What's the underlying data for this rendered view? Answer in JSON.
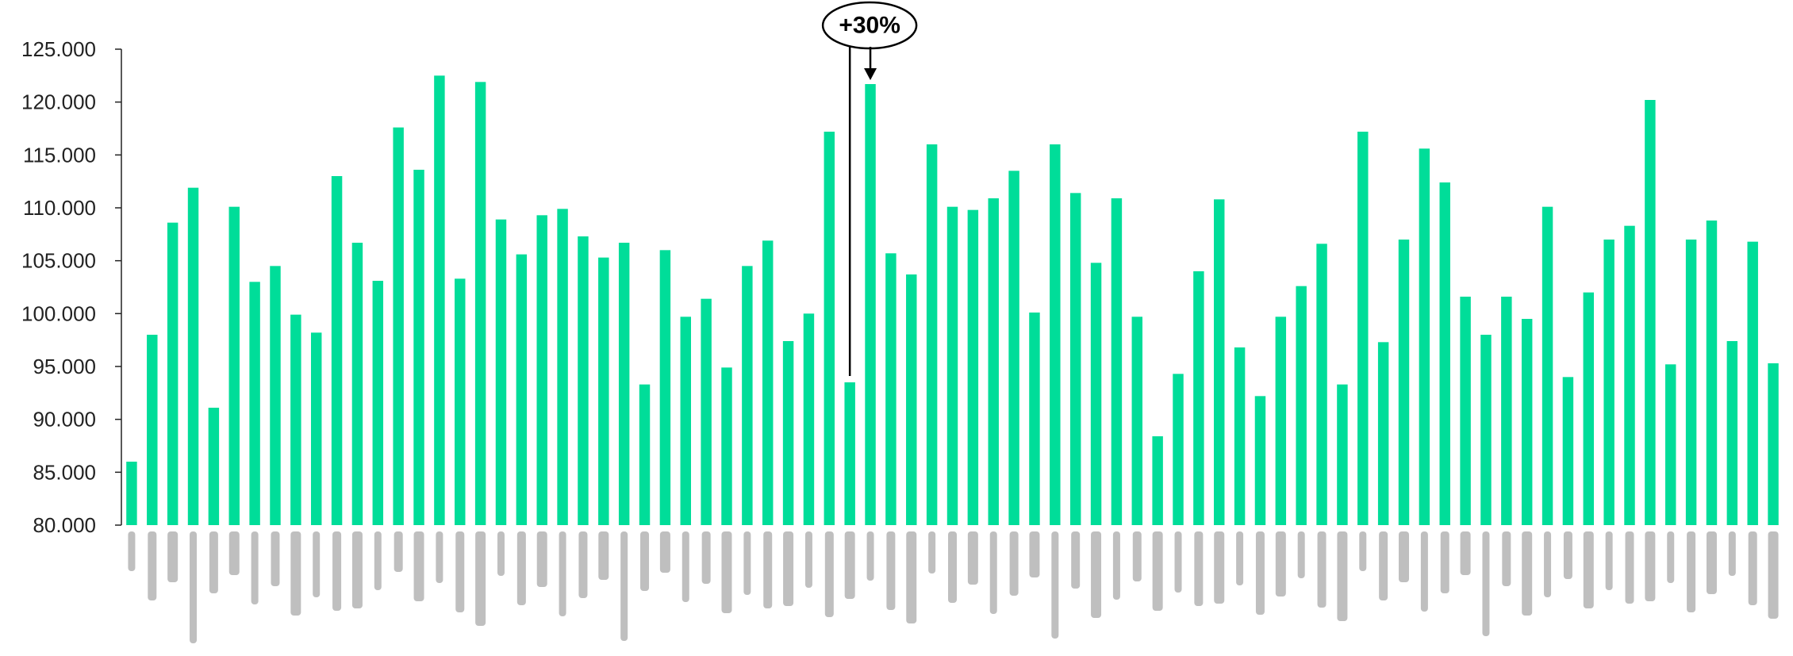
{
  "chart_data": {
    "type": "bar",
    "title": "",
    "xlabel": "",
    "ylabel": "",
    "ylim": [
      80000,
      125000
    ],
    "yticks": [
      80000,
      85000,
      90000,
      95000,
      100000,
      105000,
      110000,
      115000,
      120000,
      125000
    ],
    "ytick_labels": [
      "80.000",
      "85.000",
      "90.000",
      "95.000",
      "100.000",
      "105.000",
      "110.000",
      "115.000",
      "120.000",
      "125.000"
    ],
    "x_labels_legible": false,
    "grid": false,
    "bar_color": "#00DD99",
    "values": [
      86000,
      98000,
      108600,
      111900,
      91100,
      110100,
      103000,
      104500,
      99900,
      98200,
      113000,
      106700,
      103100,
      117600,
      113600,
      122500,
      103300,
      121900,
      108900,
      105600,
      109300,
      109900,
      107300,
      105300,
      106700,
      93300,
      106000,
      99700,
      101400,
      94900,
      104500,
      106900,
      97400,
      100000,
      117200,
      93500,
      121700,
      105700,
      103700,
      116000,
      110100,
      109800,
      110900,
      113500,
      100100,
      116000,
      111400,
      104800,
      110900,
      99700,
      88400,
      94300,
      104000,
      110800,
      96800,
      92200,
      99700,
      102600,
      106600,
      93300,
      117200,
      97300,
      107000,
      115600,
      112400,
      101600,
      98000,
      101600,
      99500,
      110100,
      94000,
      102000,
      107000,
      108300,
      120200,
      95200,
      107000,
      108800,
      97400,
      106800,
      95300
    ],
    "annotation": {
      "text": "+30%",
      "from_index": 35,
      "to_index": 36
    }
  }
}
